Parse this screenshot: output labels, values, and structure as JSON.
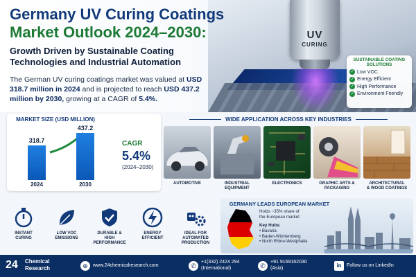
{
  "header": {
    "title_line1": "Germany UV Curing Coatings",
    "title_line2": "Market Outlook 2024–2030:",
    "subtitle_line1": "Growth Driven by Sustainable Coating",
    "subtitle_line2": "Technologies and Industrial Automation",
    "intro_prefix": "The German UV curing coatings market was valued at",
    "intro_value_2024": "USD 318.7 million in 2024",
    "intro_middle": "and is projected to reach",
    "intro_value_2030": "USD 437.2 million by 2030,",
    "intro_cagr_prefix": "growing at a CAGR of",
    "intro_cagr": "5.4%."
  },
  "lamp": {
    "line1": "UV",
    "line2": "CURING"
  },
  "sustainable": {
    "title": "SUSTAINABLE COATING SOLUTIONS",
    "items": [
      "Low VOC",
      "Energy Efficient",
      "High Performance",
      "Environment Friendly"
    ]
  },
  "market_size": {
    "title": "MARKET SIZE (USD MILLION)",
    "cagr_label": "CAGR",
    "cagr_value": "5.4%",
    "cagr_range": "(2024–2030)"
  },
  "chart_data": {
    "type": "bar",
    "categories": [
      "2024",
      "2030"
    ],
    "values": [
      318.7,
      437.2
    ],
    "value_labels": [
      "318.7",
      "437.2"
    ],
    "title": "MARKET SIZE (USD MILLION)"
  },
  "applications": {
    "title": "WIDE APPLICATION ACROSS KEY INDUSTRIES",
    "items": [
      {
        "line1": "AUTOMOTIVE",
        "line2": ""
      },
      {
        "line1": "INDUSTRIAL",
        "line2": "EQUIPMENT"
      },
      {
        "line1": "ELECTRONICS",
        "line2": ""
      },
      {
        "line1": "GRAPHIC ARTS &",
        "line2": "PACKAGING"
      },
      {
        "line1": "ARCHITECTURAL",
        "line2": "& WOOD COATINGS"
      }
    ]
  },
  "features": [
    {
      "line1": "INSTANT",
      "line2": "CURING",
      "icon": "stopwatch-icon"
    },
    {
      "line1": "LOW VOC",
      "line2": "EMISSIONS",
      "icon": "leaf-icon"
    },
    {
      "line1": "DURABLE &",
      "line2": "HIGH PERFORMANCE",
      "icon": "shield-check-icon"
    },
    {
      "line1": "ENERGY",
      "line2": "EFFICIENT",
      "icon": "lightning-icon"
    },
    {
      "line1": "IDEAL FOR",
      "line2": "AUTOMATED",
      "line3": "PRODUCTION",
      "icon": "robot-gear-icon"
    }
  ],
  "germany": {
    "title": "GERMANY LEADS EUROPEAN MARKET",
    "share_line1": "Holds ~35% share of",
    "share_line2": "the European market",
    "hubs_title": "Key Hubs:",
    "hubs": [
      "• Bavaria",
      "• Baden-Württemberg",
      "• North Rhine-Westphalia"
    ],
    "flag_colors": [
      "#000000",
      "#dd0000",
      "#ffce00"
    ]
  },
  "footer": {
    "logo_number": "24",
    "logo_line1": "Chemical",
    "logo_line2": "Research",
    "website": "www.24chemicalresearch.com",
    "phone_intl": "+1(332) 2424 294",
    "phone_intl_note": "(International)",
    "phone_asia": "+91 9169162030",
    "phone_asia_note": "(Asia)",
    "linkedin": "Follow us on LinkedIn"
  },
  "colors": {
    "navy": "#123a7a",
    "green": "#1c7a34",
    "bar_blue": "#1f7fe0",
    "footer": "#0c2f63"
  }
}
